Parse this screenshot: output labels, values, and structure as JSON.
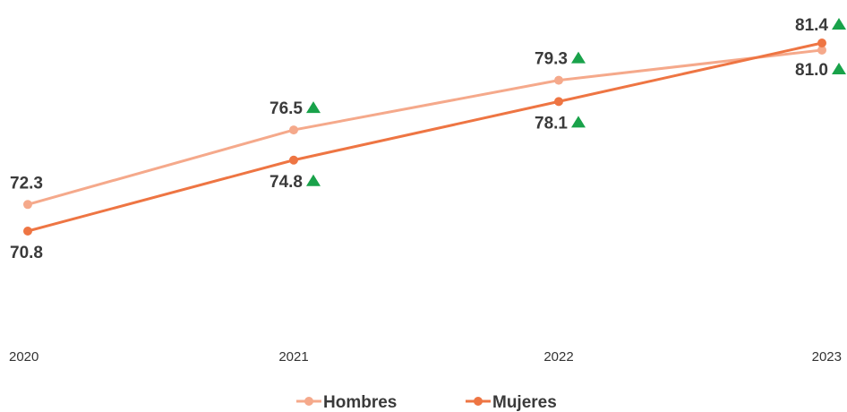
{
  "chart_data": {
    "type": "line",
    "x": [
      "2020",
      "2021",
      "2022",
      "2023"
    ],
    "series": [
      {
        "name": "Hombres",
        "values": [
          72.3,
          76.5,
          79.3,
          81.0
        ],
        "color": "#f5a98b",
        "labels": [
          "72.3",
          "76.5",
          "79.3",
          "81.0"
        ],
        "trend": [
          false,
          true,
          true,
          true
        ]
      },
      {
        "name": "Mujeres",
        "values": [
          70.8,
          74.8,
          78.1,
          81.4
        ],
        "color": "#ee7543",
        "labels": [
          "70.8",
          "74.8",
          "78.1",
          "81.4"
        ],
        "trend": [
          false,
          true,
          true,
          true
        ]
      }
    ],
    "trend_color": "#19a24a",
    "trend_icon": "up-triangle-icon",
    "grid": false,
    "legend_position": "bottom-center"
  }
}
